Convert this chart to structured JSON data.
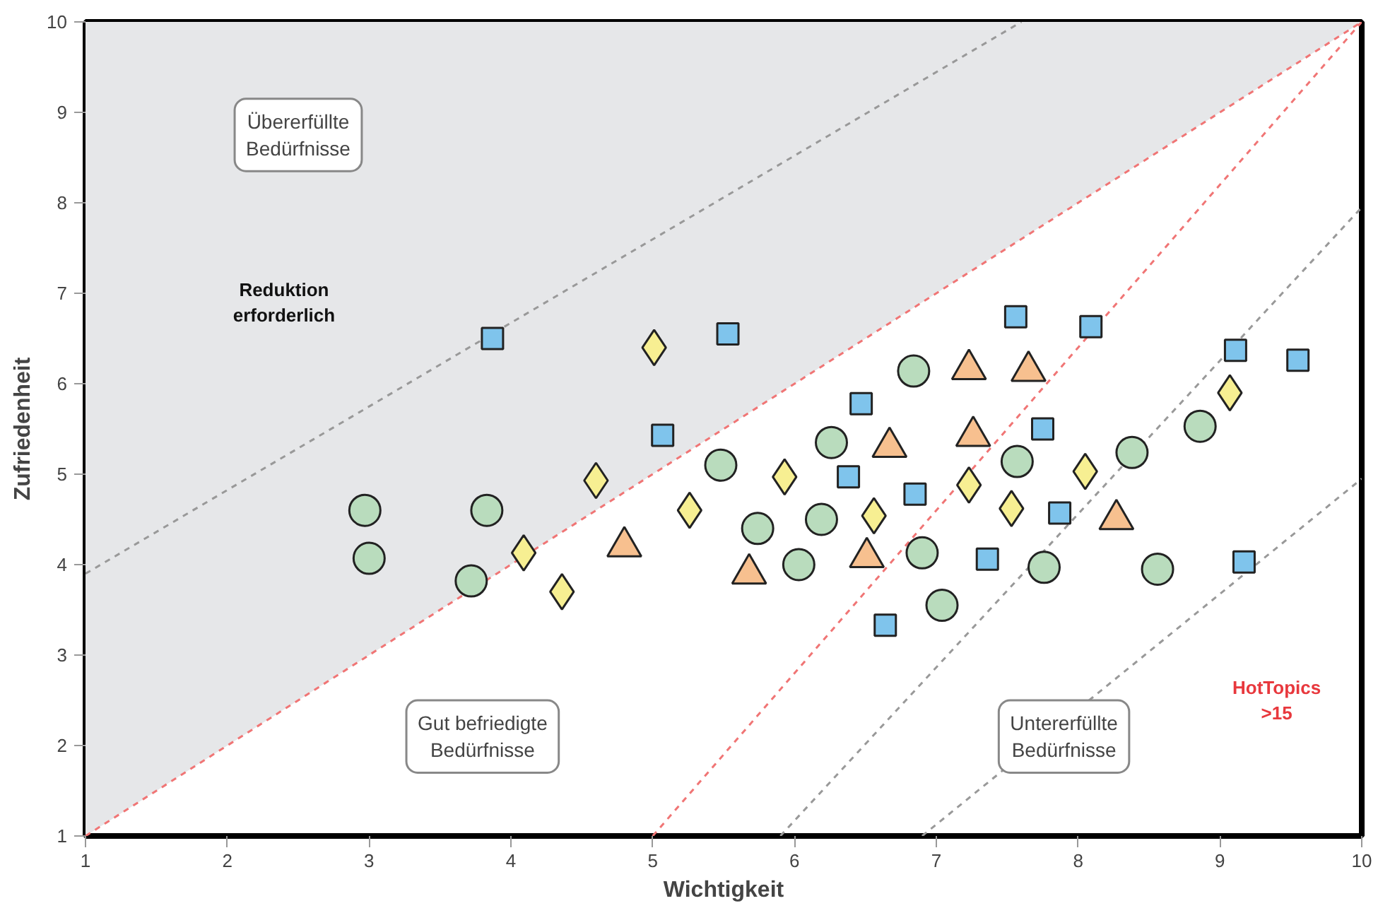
{
  "chart_data": {
    "type": "scatter",
    "xlabel": "Wichtigkeit",
    "ylabel": "Zufriedenheit",
    "xlim": [
      1,
      10
    ],
    "ylim": [
      1,
      10
    ],
    "xticks": [
      1,
      2,
      3,
      4,
      5,
      6,
      7,
      8,
      9,
      10
    ],
    "yticks": [
      1,
      2,
      3,
      4,
      5,
      6,
      7,
      8,
      9,
      10
    ],
    "grid": false,
    "series": [
      {
        "type": "line",
        "line_style": "dashed",
        "color": "#f07575",
        "x": [
          1,
          10
        ],
        "values": [
          1,
          10
        ],
        "lower": [
          1,
          10
        ],
        "upper": [
          10,
          10
        ]
      },
      {
        "type": "line",
        "line_style": "dashed",
        "color": "#999999",
        "x": [
          1,
          7.6
        ],
        "values": [
          3.9,
          10
        ]
      },
      {
        "type": "line",
        "line_style": "dashed",
        "color": "#f07575",
        "x": [
          5,
          10
        ],
        "values": [
          1,
          10
        ]
      },
      {
        "type": "line",
        "line_style": "dashed",
        "color": "#999999",
        "x": [
          5.9,
          10
        ],
        "values": [
          1,
          7.95
        ]
      },
      {
        "type": "line",
        "line_style": "dashed",
        "color": "#999999",
        "x": [
          6.9,
          10
        ],
        "values": [
          1,
          4.95
        ]
      },
      {
        "marker": "circle",
        "color": "#b9dcbd",
        "x": [
          2.97,
          3.0,
          3.83,
          3.72,
          5.48,
          5.74,
          6.19,
          6.03,
          6.26,
          6.84,
          6.9,
          7.04,
          7.57,
          7.76,
          8.38,
          8.56,
          8.86
        ],
        "values": [
          4.6,
          4.07,
          4.6,
          3.82,
          5.1,
          4.4,
          4.5,
          4.0,
          5.35,
          6.14,
          4.13,
          3.55,
          5.14,
          3.97,
          5.24,
          3.95,
          5.53
        ]
      },
      {
        "marker": "square",
        "color": "#7fc4ec",
        "x": [
          3.87,
          5.53,
          5.07,
          6.47,
          6.38,
          6.85,
          6.64,
          7.56,
          8.09,
          7.75,
          7.87,
          7.36,
          9.11,
          9.55,
          9.17
        ],
        "values": [
          6.5,
          6.55,
          5.43,
          5.78,
          4.97,
          4.78,
          3.33,
          6.74,
          6.63,
          5.5,
          4.57,
          4.06,
          6.37,
          6.26,
          4.03
        ]
      },
      {
        "marker": "diamond",
        "color": "#f7ef92",
        "x": [
          5.01,
          4.6,
          4.09,
          4.36,
          5.26,
          5.93,
          6.56,
          7.23,
          7.53,
          8.05,
          9.07
        ],
        "values": [
          6.4,
          4.93,
          4.13,
          3.7,
          4.6,
          4.97,
          4.54,
          4.88,
          4.62,
          5.03,
          5.9
        ]
      },
      {
        "marker": "triangle",
        "color": "#f7c08f",
        "x": [
          4.8,
          5.68,
          6.67,
          6.51,
          7.23,
          7.26,
          7.65,
          8.27
        ],
        "values": [
          4.2,
          3.9,
          5.3,
          4.08,
          6.16,
          5.42,
          6.14,
          4.5
        ]
      }
    ],
    "annotations": [
      "Übererfüllte\nBedürfnisse",
      "Reduktion\nerforderlich",
      "Gut befriedigte\nBedürfnisse",
      "Untererfüllte\nBedürfnisse",
      "HotTopics\n>15"
    ]
  }
}
